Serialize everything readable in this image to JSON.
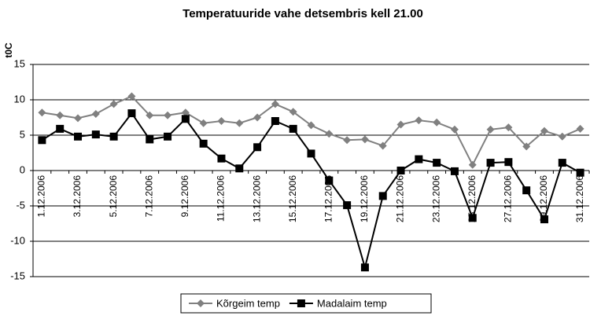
{
  "chart_data": {
    "type": "line",
    "title": "Temperatuuride vahe detsembris kell 21.00",
    "y_label": "t0C",
    "categories": [
      "1.12.2006",
      null,
      "3.12.2006",
      null,
      "5.12.2006",
      null,
      "7.12.2006",
      null,
      "9.12.2006",
      null,
      "11.12.2006",
      null,
      "13.12.2006",
      null,
      "15.12.2006",
      null,
      "17.12.2006",
      null,
      "19.12.2006",
      null,
      "21.12.2006",
      null,
      "23.12.2006",
      null,
      "25.12.2006",
      null,
      "27.12.2006",
      null,
      "29.12.2006",
      null,
      "31.12.2006"
    ],
    "series": [
      {
        "name": "Kõrgeim temp",
        "color": "#808080",
        "marker": "diamond",
        "values": [
          8.2,
          7.8,
          7.4,
          8.0,
          9.4,
          10.5,
          7.8,
          7.8,
          8.2,
          6.7,
          7.0,
          6.7,
          7.5,
          9.4,
          8.3,
          6.4,
          5.2,
          4.3,
          4.4,
          3.5,
          6.5,
          7.1,
          6.8,
          5.8,
          0.8,
          5.8,
          6.1,
          3.4,
          5.6,
          4.8,
          5.9
        ]
      },
      {
        "name": "Madalaim temp",
        "color": "#000000",
        "marker": "square",
        "values": [
          4.3,
          5.9,
          4.8,
          5.1,
          4.8,
          8.1,
          4.4,
          4.8,
          7.3,
          3.8,
          1.7,
          0.3,
          3.3,
          7.0,
          5.9,
          2.4,
          -1.4,
          -4.9,
          -13.7,
          -3.6,
          0.0,
          1.6,
          1.1,
          -0.1,
          -6.7,
          1.1,
          1.2,
          -2.8,
          -6.9,
          1.1,
          -0.3
        ]
      }
    ],
    "ylim": [
      -15,
      15
    ],
    "yticks": [
      -15,
      -10,
      -5,
      0,
      5,
      10,
      15
    ],
    "grid": true,
    "legend": "bottom"
  }
}
